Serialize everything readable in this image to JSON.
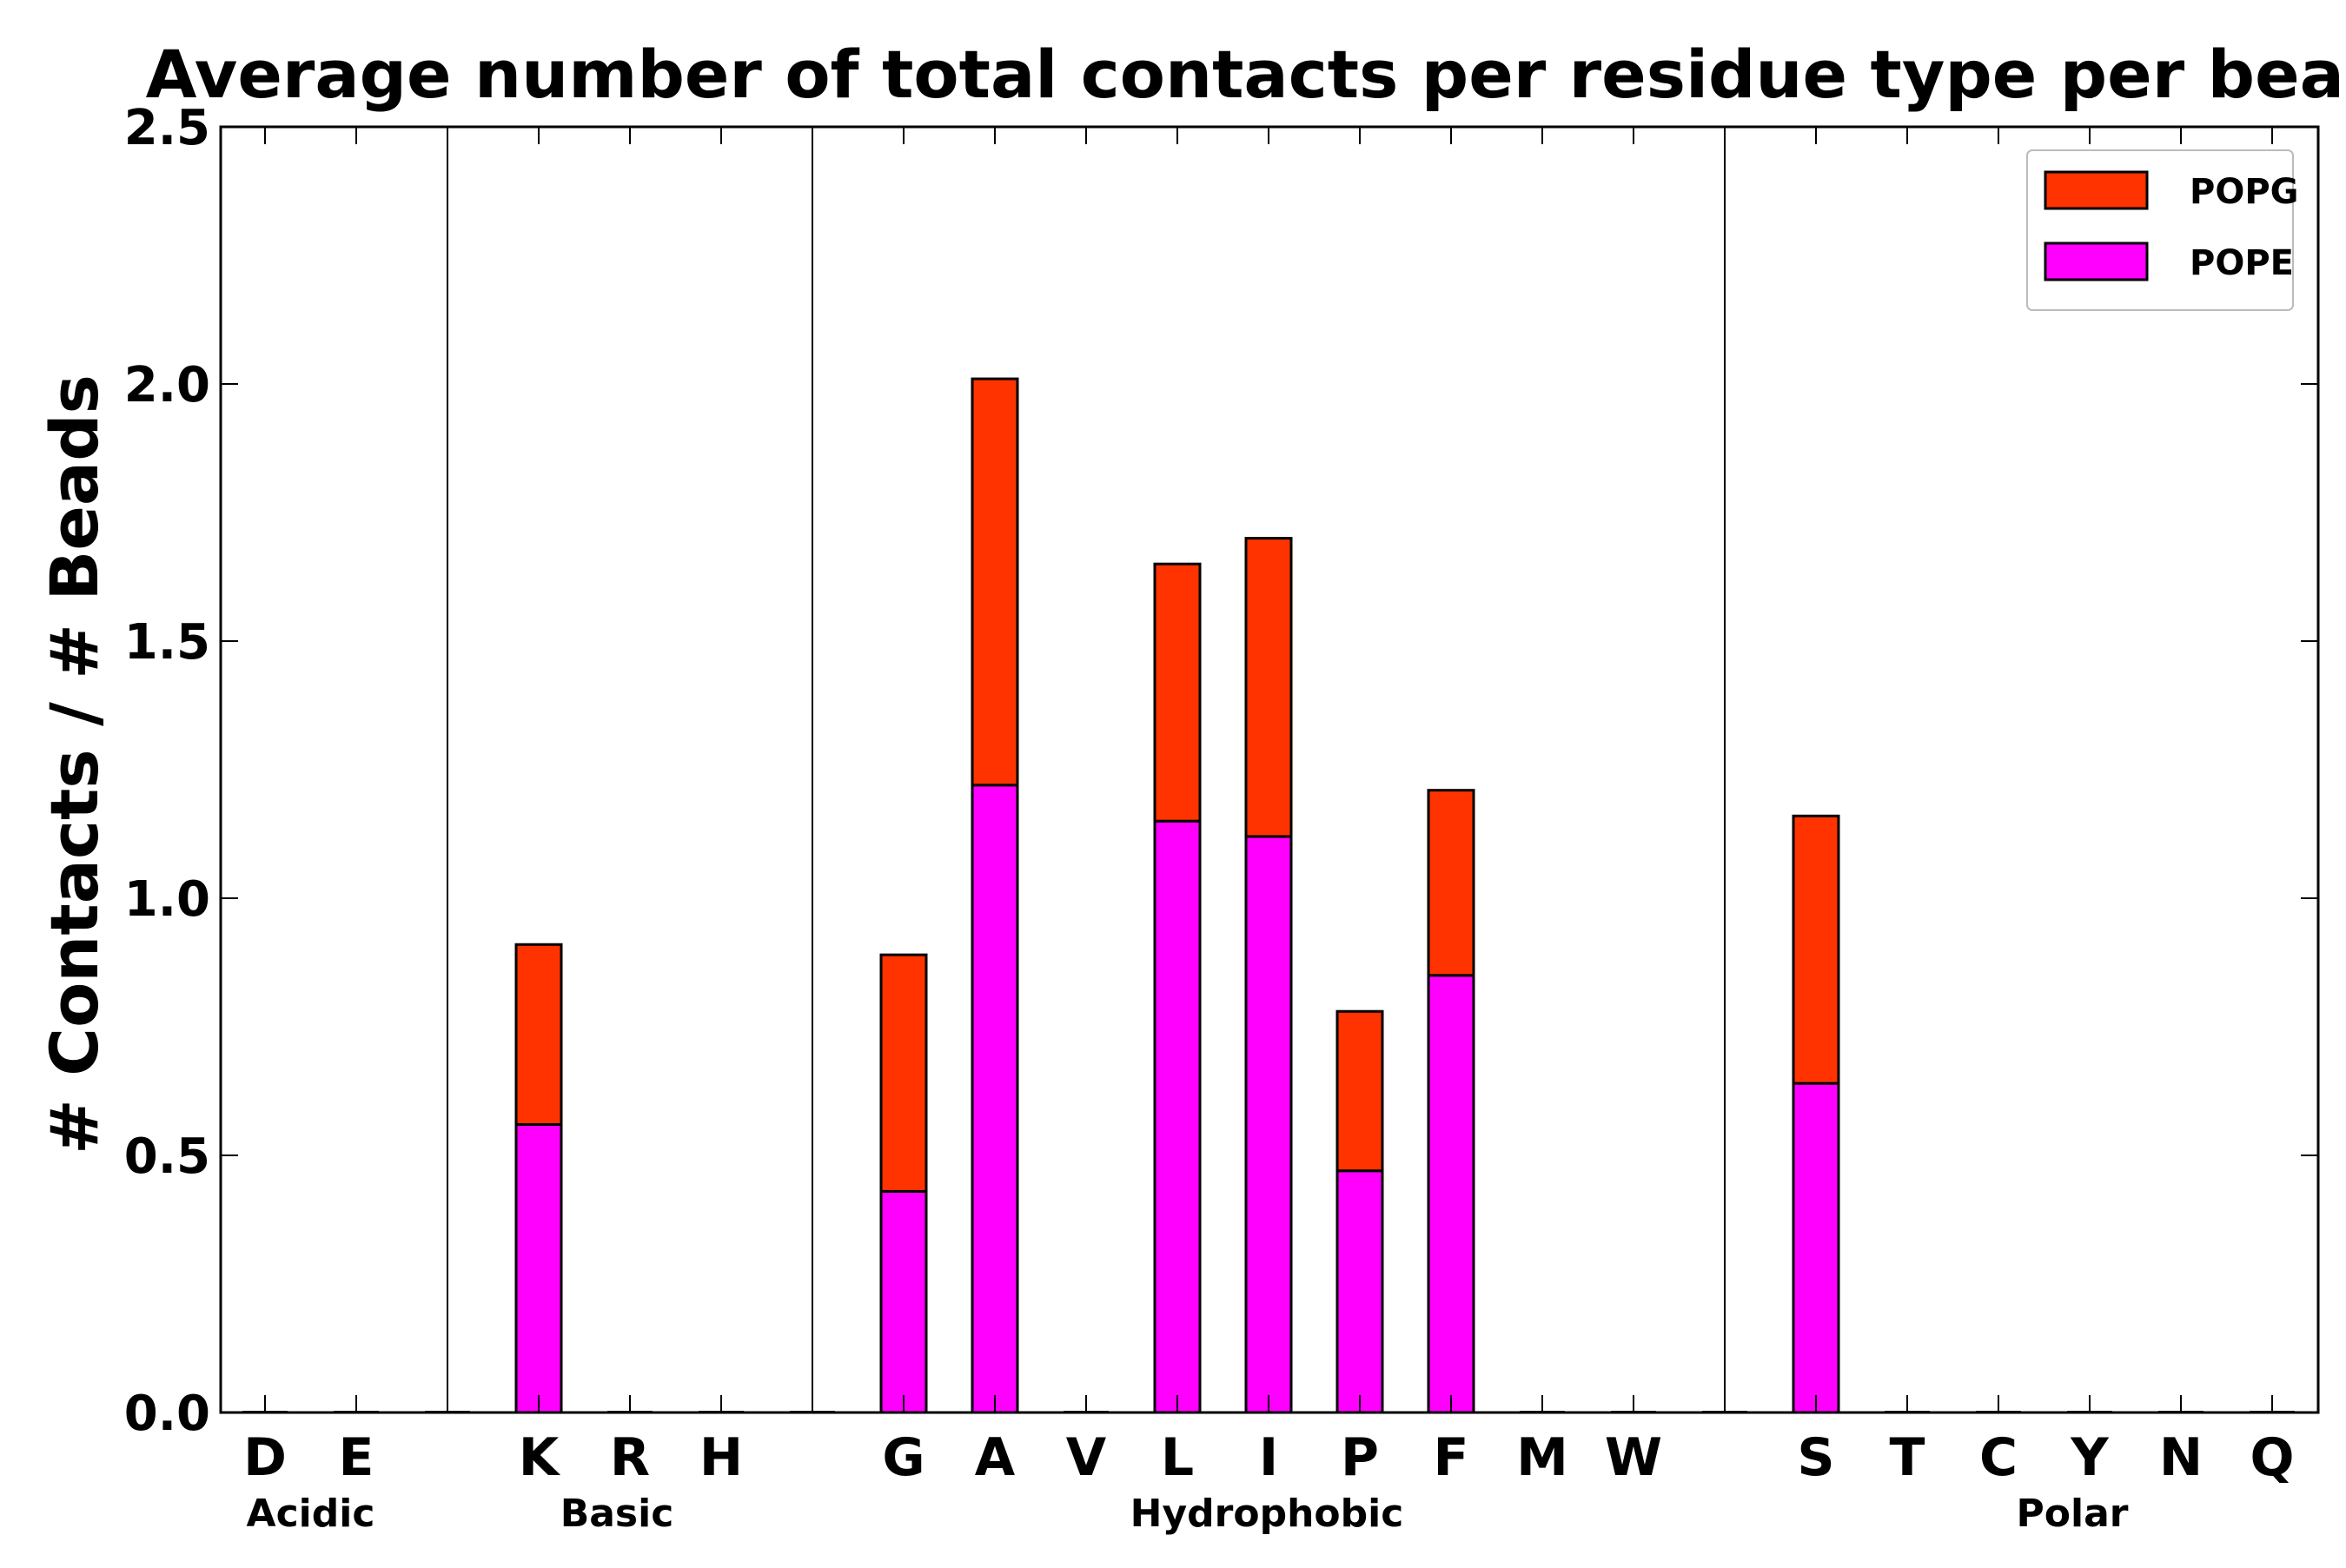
{
  "chart_data": {
    "type": "bar",
    "stacked": true,
    "title": "Average number of total contacts per residue type per bead",
    "xlabel": "",
    "ylabel": "# Contacts / # Beads",
    "ylim": [
      0,
      2.5
    ],
    "yticks": [
      "0.0",
      "0.5",
      "1.0",
      "1.5",
      "2.0",
      "2.5"
    ],
    "categories": [
      "D",
      "E",
      "K",
      "R",
      "H",
      "G",
      "A",
      "V",
      "L",
      "I",
      "P",
      "F",
      "M",
      "W",
      "S",
      "T",
      "C",
      "Y",
      "N",
      "Q"
    ],
    "groups": [
      {
        "name": "Acidic",
        "members": [
          "D",
          "E"
        ]
      },
      {
        "name": "Basic",
        "members": [
          "K",
          "R",
          "H"
        ]
      },
      {
        "name": "Hydrophobic",
        "members": [
          "G",
          "A",
          "V",
          "L",
          "I",
          "P",
          "F",
          "M",
          "W"
        ]
      },
      {
        "name": "Polar",
        "members": [
          "S",
          "T",
          "C",
          "Y",
          "N",
          "Q"
        ]
      }
    ],
    "series": [
      {
        "name": "POPE",
        "color": "#ff00ff",
        "values": [
          0,
          0,
          0.56,
          0,
          0,
          0.43,
          1.22,
          0,
          1.15,
          1.12,
          0.47,
          0.85,
          0,
          0,
          0.64,
          0,
          0,
          0,
          0,
          0
        ]
      },
      {
        "name": "POPG",
        "color": "#ff3300",
        "values": [
          0,
          0,
          0.35,
          0,
          0,
          0.46,
          0.79,
          0,
          0.5,
          0.58,
          0.31,
          0.36,
          0,
          0,
          0.52,
          0,
          0,
          0,
          0,
          0
        ]
      }
    ],
    "legend": {
      "position": "top-right",
      "entries": [
        "POPG",
        "POPE"
      ]
    },
    "grid": false
  }
}
